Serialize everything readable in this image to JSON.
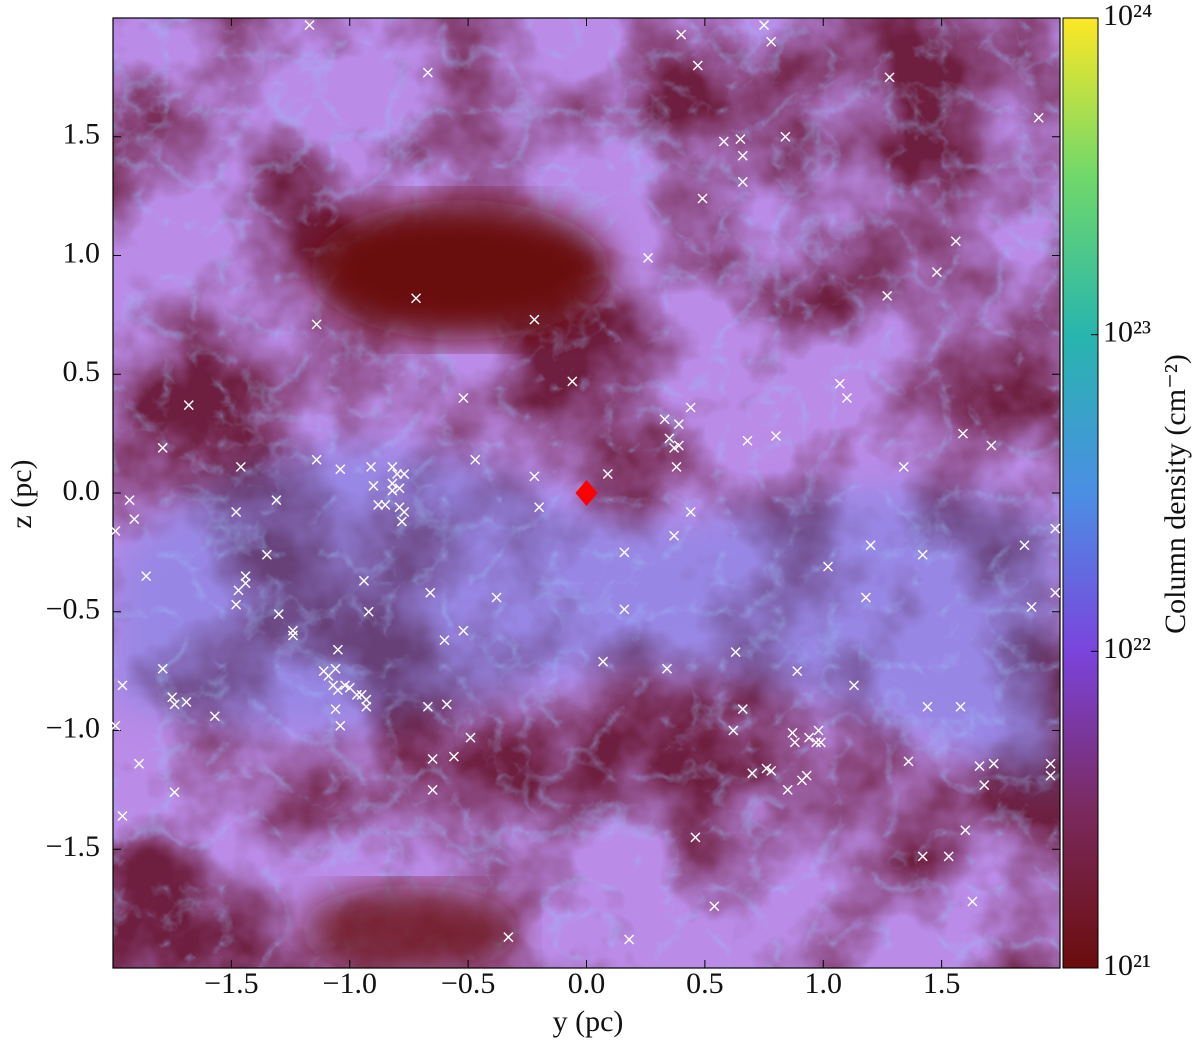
{
  "chart_data": {
    "type": "scatter",
    "xlabel": "y  (pc)",
    "ylabel": "z  (pc)",
    "xlim": [
      -2,
      2
    ],
    "ylim": [
      -2,
      2
    ],
    "xticks": [
      {
        "value": -1.5,
        "label": "−1.5"
      },
      {
        "value": -1.0,
        "label": "−1.0"
      },
      {
        "value": -0.5,
        "label": "−0.5"
      },
      {
        "value": 0.0,
        "label": "0.0"
      },
      0.5,
      {
        "value": 1.0,
        "label": "1.0"
      },
      1.5
    ],
    "yticks": [
      {
        "value": -1.5,
        "label": "−1.5"
      },
      {
        "value": -1.0,
        "label": "−1.0"
      },
      {
        "value": -0.5,
        "label": "−0.5"
      },
      {
        "value": 0.0,
        "label": "0.0"
      },
      0.5,
      {
        "value": 1.0,
        "label": "1.0"
      },
      1.5
    ],
    "series": [
      {
        "color": "#ffffff",
        "marker": "x",
        "x": [
          -1.17,
          -0.67,
          0.4,
          0.75,
          0.78,
          0.47,
          1.28,
          1.91,
          0.58,
          0.65,
          0.66,
          0.84,
          0.66,
          0.49,
          0.26,
          1.48,
          1.56,
          1.27,
          -0.72,
          -0.22,
          -1.14,
          -0.06,
          -0.52,
          1.07,
          1.1,
          -1.68,
          0.44,
          0.33,
          0.39,
          0.35,
          0.37,
          0.39,
          0.38,
          1.59,
          0.8,
          0.68,
          1.71,
          -1.79,
          -1.14,
          -1.46,
          -1.04,
          -0.91,
          -0.82,
          -0.8,
          -0.77,
          -0.9,
          -0.82,
          -0.79,
          -0.47,
          -0.22,
          0.09,
          1.34,
          -1.93,
          -1.31,
          -0.82,
          -0.88,
          -0.85,
          -0.79,
          -0.77,
          -0.78,
          -1.91,
          -1.48,
          -0.2,
          0.44,
          -1.99,
          0.37,
          1.98,
          -1.35,
          1.2,
          1.42,
          0.16,
          -1.86,
          -1.44,
          -1.44,
          -1.47,
          1.02,
          1.85,
          -1.48,
          -0.94,
          -0.38,
          0.16,
          1.18,
          1.88,
          1.98,
          -1.3,
          -1.24,
          -1.24,
          -0.66,
          -0.92,
          -0.52,
          -0.6,
          -1.05,
          0.34,
          0.07,
          0.63,
          0.89,
          -1.79,
          -1.96,
          1.13,
          -1.75,
          -1.74,
          -1.69,
          -1.11,
          -1.09,
          -1.06,
          -1.07,
          -1.02,
          -1.05,
          -1.0,
          -0.97,
          -0.95,
          -1.57,
          -0.93,
          1.44,
          1.58,
          -1.06,
          -0.93,
          -0.67,
          -0.59,
          -1.99,
          -1.04,
          -0.49,
          0.66,
          0.62,
          0.87,
          0.94,
          0.98,
          0.99,
          0.88,
          0.97,
          -0.65,
          -0.56,
          -1.89,
          0.7,
          0.76,
          0.78,
          0.93,
          0.91,
          1.36,
          1.66,
          1.72,
          1.96,
          1.96,
          -0.65,
          -1.74,
          1.68,
          0.85,
          -1.96,
          0.46,
          1.42,
          1.6,
          1.53,
          -0.33,
          0.18,
          0.54,
          1.63
        ],
        "y": [
          1.97,
          1.77,
          1.93,
          1.97,
          1.9,
          1.8,
          1.75,
          1.58,
          1.48,
          1.49,
          1.42,
          1.5,
          1.31,
          1.24,
          0.99,
          0.93,
          1.06,
          0.83,
          0.82,
          0.73,
          0.71,
          0.47,
          0.4,
          0.46,
          0.4,
          0.37,
          0.36,
          0.31,
          0.29,
          0.23,
          0.19,
          0.2,
          0.11,
          0.25,
          0.24,
          0.22,
          0.2,
          0.19,
          0.14,
          0.11,
          0.1,
          0.11,
          0.11,
          0.08,
          0.08,
          0.03,
          0.04,
          0.02,
          0.14,
          0.07,
          0.08,
          0.11,
          -0.03,
          -0.03,
          0.01,
          -0.05,
          -0.05,
          -0.06,
          -0.08,
          -0.12,
          -0.11,
          -0.08,
          -0.06,
          -0.08,
          -0.16,
          -0.18,
          -0.15,
          -0.26,
          -0.22,
          -0.26,
          -0.25,
          -0.35,
          -0.35,
          -0.38,
          -0.41,
          -0.31,
          -0.22,
          -0.47,
          -0.37,
          -0.44,
          -0.49,
          -0.44,
          -0.48,
          -0.42,
          -0.51,
          -0.58,
          -0.6,
          -0.42,
          -0.5,
          -0.58,
          -0.62,
          -0.66,
          -0.74,
          -0.71,
          -0.67,
          -0.75,
          -0.74,
          -0.81,
          -0.81,
          -0.86,
          -0.89,
          -0.88,
          -0.75,
          -0.77,
          -0.74,
          -0.81,
          -0.81,
          -0.83,
          -0.82,
          -0.85,
          -0.85,
          -0.94,
          -0.9,
          -0.9,
          -0.9,
          -0.91,
          -0.87,
          -0.9,
          -0.89,
          -0.98,
          -0.98,
          -1.03,
          -0.91,
          -1.0,
          -1.01,
          -1.03,
          -1.0,
          -1.05,
          -1.05,
          -1.05,
          -1.12,
          -1.11,
          -1.14,
          -1.18,
          -1.16,
          -1.17,
          -1.19,
          -1.21,
          -1.13,
          -1.15,
          -1.14,
          -1.14,
          -1.19,
          -1.25,
          -1.26,
          -1.23,
          -1.25,
          -1.36,
          -1.45,
          -1.53,
          -1.42,
          -1.53,
          -1.87,
          -1.88,
          -1.74,
          -1.72
        ]
      },
      {
        "color": "#ff0000",
        "marker": "D",
        "x": [
          0.0
        ],
        "y": [
          0.0
        ]
      }
    ],
    "colorbar": {
      "label": "Column density (cm⁻²)",
      "log": true,
      "lim": [
        1e+21,
        1e+24
      ],
      "ticks": [
        {
          "value": 1e+21,
          "label": "10²¹"
        },
        {
          "value": 1e+22,
          "label": "10²²"
        },
        {
          "value": 1e+23,
          "label": "10²³"
        },
        {
          "value": 1e+24,
          "label": "10²⁴"
        }
      ],
      "colors": [
        "#6b0d0d",
        "#7a2a5e",
        "#7b44dc",
        "#4b8fe4",
        "#27b5ad",
        "#70d86a",
        "#fde725"
      ]
    }
  }
}
